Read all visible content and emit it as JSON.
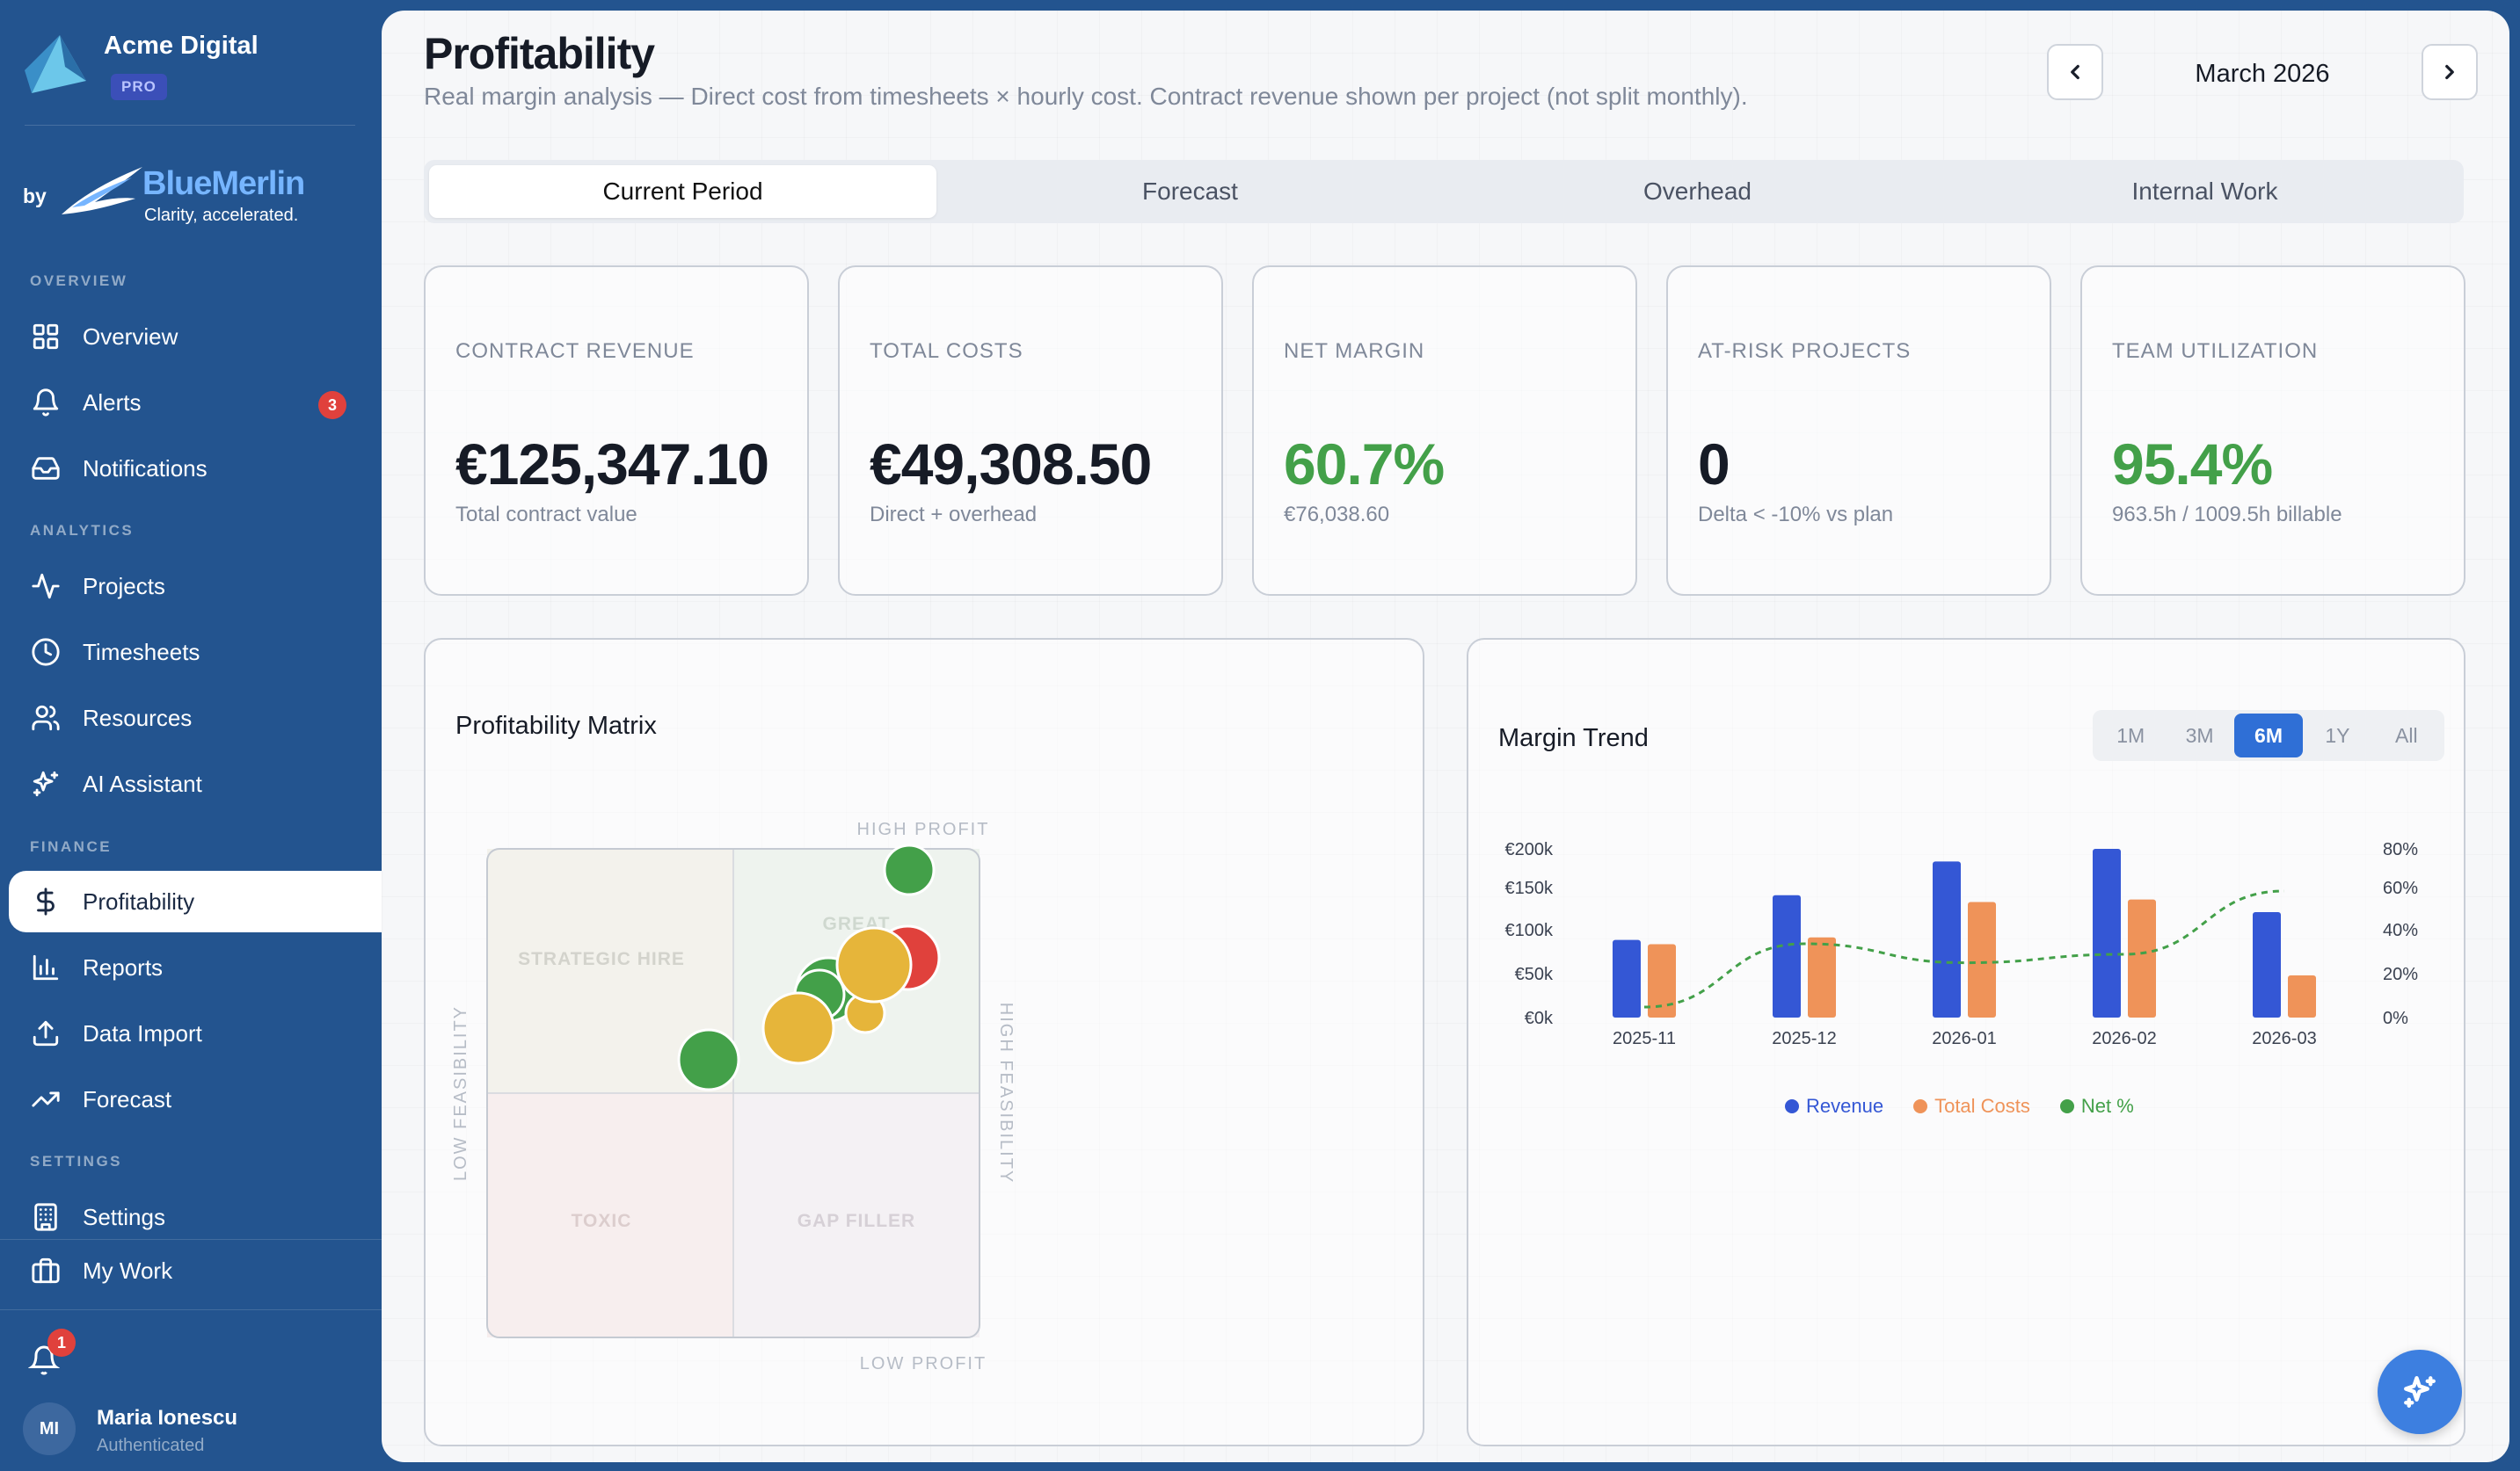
{
  "sidebar": {
    "company": "Acme Digital",
    "plan": "PRO",
    "by": "by",
    "partner_name": "BlueMerlin",
    "partner_tagline": "Clarity, accelerated.",
    "sections": {
      "overview": "OVERVIEW",
      "analytics": "ANALYTICS",
      "finance": "FINANCE",
      "settings": "SETTINGS"
    },
    "items": {
      "overview": "Overview",
      "alerts": "Alerts",
      "alerts_badge": "3",
      "notifications": "Notifications",
      "projects": "Projects",
      "timesheets": "Timesheets",
      "resources": "Resources",
      "ai_assistant": "AI Assistant",
      "profitability": "Profitability",
      "reports": "Reports",
      "data_import": "Data Import",
      "forecast": "Forecast",
      "settings": "Settings",
      "my_work": "My Work"
    },
    "bell_badge": "1",
    "user": {
      "initials": "MI",
      "name": "Maria Ionescu",
      "status": "Authenticated"
    }
  },
  "header": {
    "title": "Profitability",
    "subtitle": "Real margin analysis — Direct cost from timesheets × hourly cost. Contract revenue shown per project (not split monthly).",
    "month": "March 2026"
  },
  "tabs": [
    "Current Period",
    "Forecast",
    "Overhead",
    "Internal Work"
  ],
  "kpis": [
    {
      "label": "CONTRACT REVENUE",
      "value": "€125,347.10",
      "sub": "Total contract value"
    },
    {
      "label": "TOTAL COSTS",
      "value": "€49,308.50",
      "sub": "Direct + overhead"
    },
    {
      "label": "NET MARGIN",
      "value": "60.7%",
      "sub": "€76,038.60"
    },
    {
      "label": "AT-RISK PROJECTS",
      "value": "0",
      "sub": "Delta < -10% vs plan"
    },
    {
      "label": "TEAM UTILIZATION",
      "value": "95.4%",
      "sub": "963.5h / 1009.5h billable"
    }
  ],
  "matrix": {
    "title": "Profitability Matrix",
    "axis_top": "HIGH PROFIT",
    "axis_bottom": "LOW PROFIT",
    "axis_left": "LOW FEASIBILITY",
    "axis_right": "HIGH FEASIBILITY",
    "quadrants": {
      "top_left": "STRATEGIC HIRE",
      "top_right": "GREAT",
      "bottom_left": "TOXIC",
      "bottom_right": "GAP FILLER"
    },
    "colors": {
      "green": "#43a049",
      "yellow": "#e6b53a",
      "red": "#e0413c"
    }
  },
  "trend": {
    "title": "Margin Trend",
    "ranges": [
      "1M",
      "3M",
      "6M",
      "1Y",
      "All"
    ],
    "selected_range": "6M"
  },
  "chart_data": {
    "type": "bar",
    "categories": [
      "2025-11",
      "2025-12",
      "2026-01",
      "2026-02",
      "2026-03"
    ],
    "series": [
      {
        "name": "Revenue",
        "values": [
          92,
          145,
          185,
          200,
          125
        ],
        "color": "#3457d5"
      },
      {
        "name": "Total Costs",
        "values": [
          87,
          95,
          137,
          140,
          50
        ],
        "color": "#ef9359"
      },
      {
        "name": "Net %",
        "type": "line",
        "axis": "right",
        "values": [
          5,
          35,
          26,
          30,
          60
        ],
        "color": "#43a049"
      }
    ],
    "y_left": {
      "ticks": [
        "€0k",
        "€50k",
        "€100k",
        "€150k",
        "€200k"
      ],
      "range": [
        0,
        200
      ]
    },
    "y_right": {
      "ticks": [
        "0%",
        "20%",
        "40%",
        "60%",
        "80%"
      ],
      "range": [
        0,
        80
      ]
    },
    "legend_position": "bottom"
  }
}
